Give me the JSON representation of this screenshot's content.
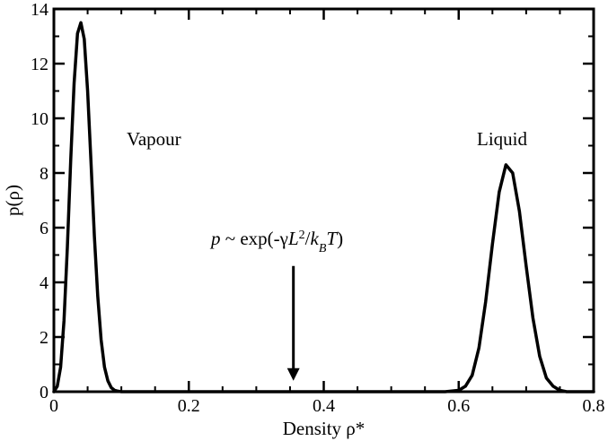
{
  "chart_data": {
    "type": "line",
    "title": "",
    "xlabel": "Density ρ*",
    "ylabel": "p(ρ)",
    "xlim": [
      0,
      0.8
    ],
    "ylim": [
      0,
      14
    ],
    "x_major_ticks": [
      0,
      0.2,
      0.4,
      0.6,
      0.8
    ],
    "x_tick_labels": [
      "0",
      "0.2",
      "0.4",
      "0.6",
      "0.8"
    ],
    "y_major_ticks": [
      0,
      2,
      4,
      6,
      8,
      10,
      12,
      14
    ],
    "y_tick_labels": [
      "0",
      "2",
      "4",
      "6",
      "8",
      "10",
      "12",
      "14"
    ],
    "x_minor_step": 0.05,
    "y_minor_step": 1,
    "grid": false,
    "legend": "none",
    "line_color": "#000000",
    "series": [
      {
        "x": [
          0,
          0.005,
          0.01,
          0.015,
          0.02,
          0.025,
          0.03,
          0.035,
          0.04,
          0.045,
          0.05,
          0.055,
          0.06,
          0.065,
          0.07,
          0.075,
          0.08,
          0.085,
          0.09,
          0.095,
          0.1,
          0.11,
          0.12,
          0.15,
          0.2,
          0.25,
          0.3,
          0.35,
          0.4,
          0.45,
          0.5,
          0.55,
          0.58,
          0.6,
          0.61,
          0.62,
          0.63,
          0.64,
          0.65,
          0.66,
          0.67,
          0.68,
          0.69,
          0.7,
          0.71,
          0.72,
          0.73,
          0.74,
          0.75,
          0.76,
          0.77,
          0.8
        ],
        "y": [
          0.0,
          0.2,
          0.9,
          2.6,
          5.3,
          8.5,
          11.3,
          13.1,
          13.5,
          12.9,
          11.0,
          8.4,
          5.7,
          3.5,
          1.9,
          0.9,
          0.4,
          0.15,
          0.05,
          0.02,
          0.0,
          0.0,
          0.0,
          0.0,
          0.0,
          0.0,
          0.0,
          0.0,
          0.0,
          0.0,
          0.0,
          0.0,
          0.0,
          0.05,
          0.2,
          0.6,
          1.6,
          3.3,
          5.4,
          7.3,
          8.3,
          8.0,
          6.6,
          4.6,
          2.7,
          1.3,
          0.5,
          0.2,
          0.05,
          0.0,
          0.0,
          0.0
        ]
      }
    ],
    "annotations": {
      "vapour": "Vapour",
      "liquid": "Liquid",
      "formula": {
        "p": "p",
        "tilde": " ~ exp(-γ",
        "L": "L",
        "sup2": "2",
        "slash": "/",
        "k": "k",
        "subB": "B",
        "T": "T",
        "close": ")"
      },
      "arrow_x": 0.355,
      "arrow_y_start": 4.6,
      "arrow_y_end": 0.4
    }
  }
}
